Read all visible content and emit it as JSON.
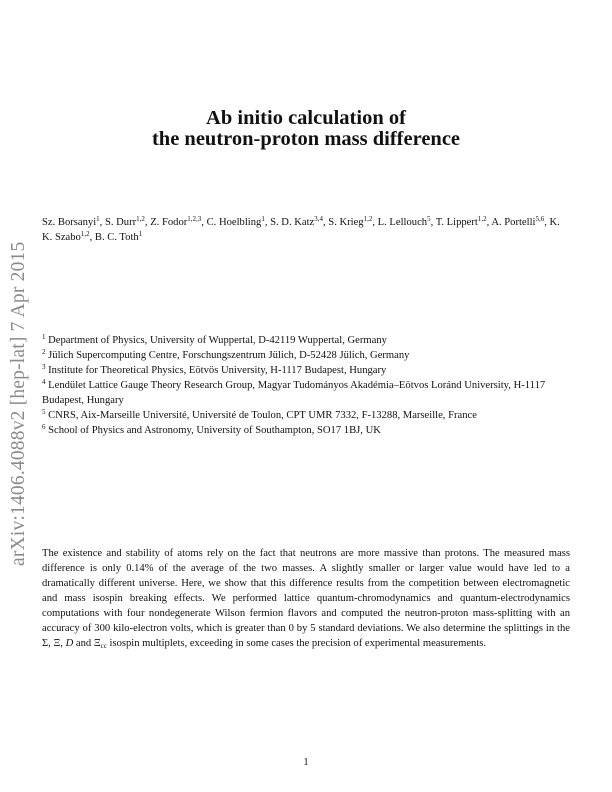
{
  "stamp": "arXiv:1406.4088v2  [hep-lat]  7 Apr 2015",
  "title": {
    "line1": "Ab initio calculation of",
    "line2": "the neutron-proton mass difference"
  },
  "authors": [
    {
      "name": "Sz. Borsanyi",
      "sup": "1"
    },
    {
      "name": "S. Durr",
      "sup": "1,2"
    },
    {
      "name": "Z. Fodor",
      "sup": "1,2,3"
    },
    {
      "name": "C. Hoelbling",
      "sup": "1"
    },
    {
      "name": "S. D. Katz",
      "sup": "3,4"
    },
    {
      "name": "S. Krieg",
      "sup": "1,2"
    },
    {
      "name": "L. Lellouch",
      "sup": "5"
    },
    {
      "name": "T. Lippert",
      "sup": "1,2"
    },
    {
      "name": "A. Portelli",
      "sup": "5,6"
    },
    {
      "name": "K. K. Szabo",
      "sup": "1,2"
    },
    {
      "name": "B. C. Toth",
      "sup": "1"
    }
  ],
  "affiliations": [
    {
      "num": "1",
      "text": "Department of Physics, University of Wuppertal, D-42119 Wuppertal, Germany"
    },
    {
      "num": "2",
      "text": "Jülich Supercomputing Centre, Forschungszentrum Jülich, D-52428 Jülich, Germany"
    },
    {
      "num": "3",
      "text": "Institute for Theoretical Physics, Eötvös University, H-1117 Budapest, Hungary"
    },
    {
      "num": "4",
      "text": "Lendület Lattice Gauge Theory Research Group, Magyar Tudományos Akadémia–Eötvos Loránd University, H-1117 Budapest, Hungary"
    },
    {
      "num": "5",
      "text": "CNRS, Aix-Marseille Université, Université de Toulon, CPT UMR 7332, F-13288, Marseille, France"
    },
    {
      "num": "6",
      "text": "School of Physics and Astronomy, University of Southampton, SO17 1BJ, UK"
    }
  ],
  "abstract": {
    "part1": "The existence and stability of atoms rely on the fact that neutrons are more massive than protons. The measured mass difference is only 0.14% of the average of the two masses. A slightly smaller or larger value would have led to a dramatically different universe. Here, we show that this difference results from the competition between electromagnetic and mass isospin breaking effects. We performed lattice quantum-chromodynamics and quantum-electrodynamics computations with four nondegenerate Wilson fermion flavors and computed the neutron-proton mass-splitting with an accuracy of 300 kilo-electron volts, which is greater than 0 by 5 standard deviations. We also determine the splittings in the Σ, Ξ, ",
    "sym_D": "D",
    "part2": " and Ξ",
    "sub_cc": "cc",
    "part3": " isospin multiplets, exceeding in some cases the precision of experimental measurements."
  },
  "page_number": "1"
}
